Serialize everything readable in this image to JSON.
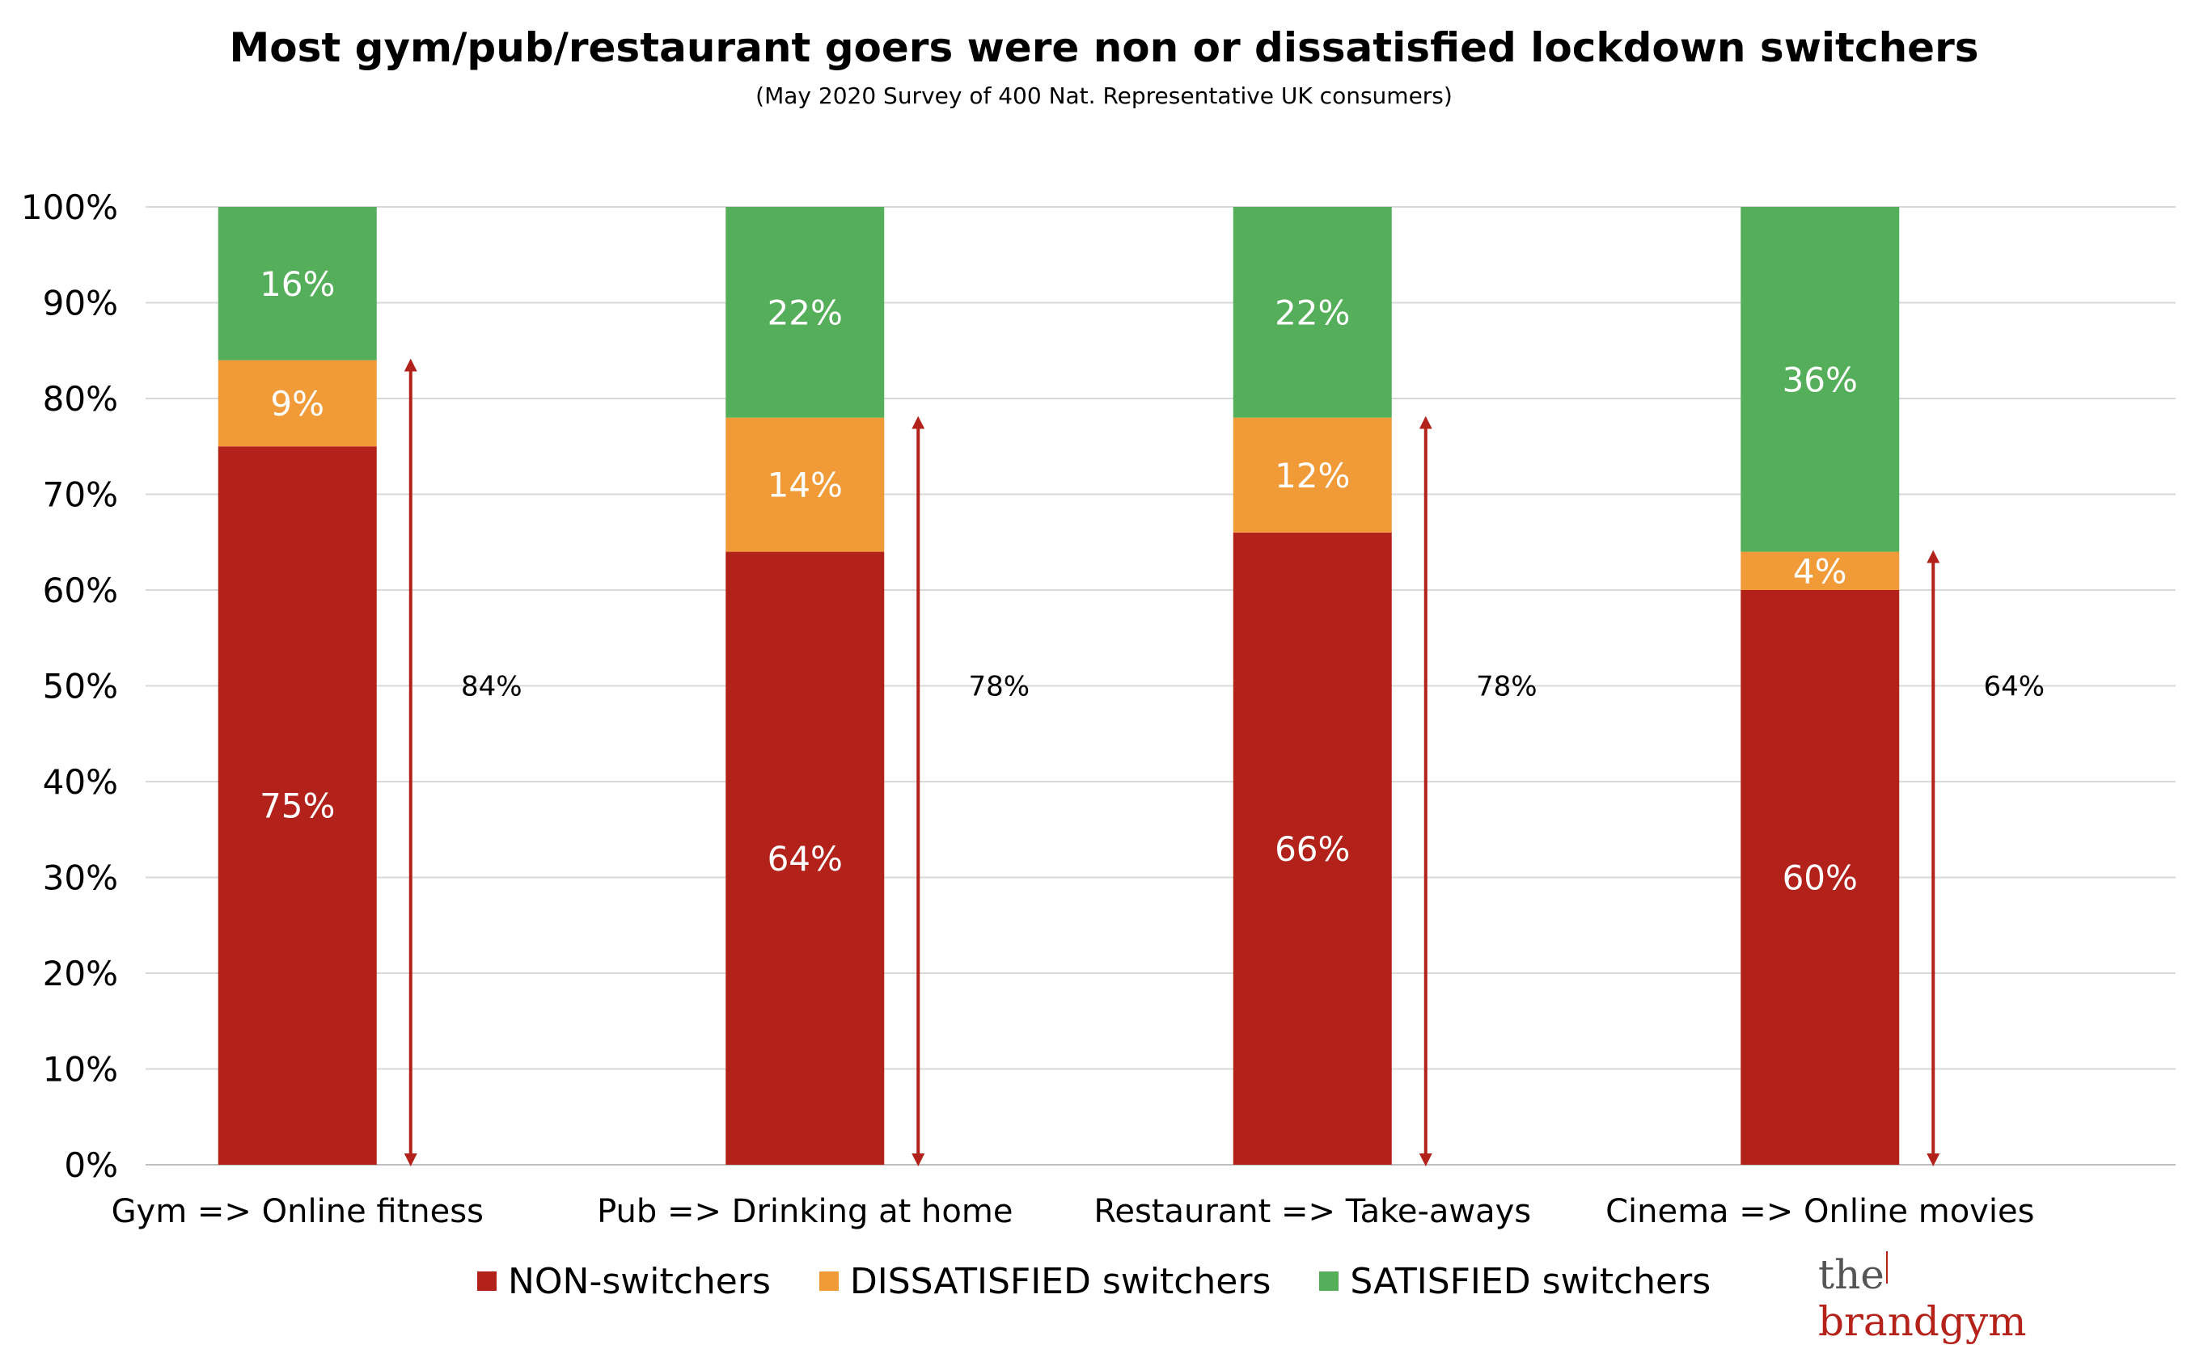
{
  "title": "Most gym/pub/restaurant goers were non or dissatisfied lockdown switchers",
  "subtitle": "(May 2020 Survey of 400 Nat. Representative UK consumers)",
  "colors": {
    "non": "#b2221b",
    "dissatisfied": "#f09a38",
    "satisfied": "#55ae5a",
    "arrow": "#b2221b",
    "grid": "#d9d9d9"
  },
  "legend": {
    "items": [
      {
        "label": "NON-switchers",
        "color": "#b2221b"
      },
      {
        "label": "DISSATISFIED switchers",
        "color": "#f09a38"
      },
      {
        "label": "SATISFIED switchers",
        "color": "#55ae5a"
      }
    ]
  },
  "logo": {
    "the": "the",
    "brand": "brandgym"
  },
  "chart_data": {
    "type": "bar",
    "stacked": true,
    "categories": [
      "Gym => Online fitness",
      "Pub =>  Drinking at home",
      "Restaurant => Take-aways",
      "Cinema => Online movies"
    ],
    "series": [
      {
        "name": "NON-switchers",
        "values": [
          75,
          64,
          66,
          60
        ],
        "labels": [
          "75%",
          "64%",
          "66%",
          "60%"
        ]
      },
      {
        "name": "DISSATISFIED switchers",
        "values": [
          9,
          14,
          12,
          4
        ],
        "labels": [
          "9%",
          "14%",
          "12%",
          "4%"
        ]
      },
      {
        "name": "SATISFIED switchers",
        "values": [
          16,
          22,
          22,
          36
        ],
        "labels": [
          "16%",
          "22%",
          "22%",
          "36%"
        ]
      }
    ],
    "annotations": {
      "values": [
        84,
        78,
        78,
        64
      ],
      "labels": [
        "84%",
        "78%",
        "78%",
        "64%"
      ]
    },
    "y_ticks": [
      "0%",
      "10%",
      "20%",
      "30%",
      "40%",
      "50%",
      "60%",
      "70%",
      "80%",
      "90%",
      "100%"
    ],
    "ylim": [
      0,
      100
    ],
    "grid": true,
    "legend_position": "bottom"
  }
}
